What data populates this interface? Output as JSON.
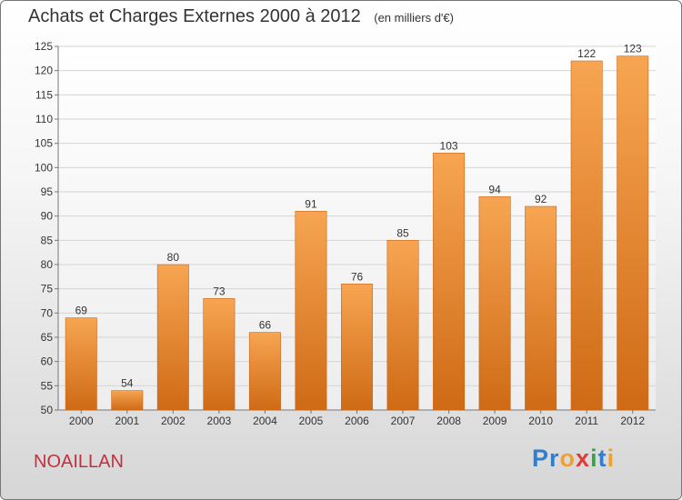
{
  "title": "Achats et Charges Externes 2000 à 2012",
  "unit": "(en milliers d'€)",
  "commune": "NOAILLAN",
  "brand": {
    "letters": [
      "P",
      "r",
      "o",
      "x",
      "i",
      "t",
      "i"
    ],
    "colors": [
      "#2f7fd1",
      "#2f7fd1",
      "#f0a030",
      "#e03a3a",
      "#3aa24a",
      "#2f7fd1",
      "#f0a030"
    ]
  },
  "chart_data": {
    "type": "bar",
    "categories": [
      "2000",
      "2001",
      "2002",
      "2003",
      "2004",
      "2005",
      "2006",
      "2007",
      "2008",
      "2009",
      "2010",
      "2011",
      "2012"
    ],
    "values": [
      69,
      54,
      80,
      73,
      66,
      91,
      76,
      85,
      103,
      94,
      92,
      122,
      123
    ],
    "title": "Achats et Charges Externes 2000 à 2012",
    "ylim": [
      50,
      125
    ],
    "yticks": [
      50,
      55,
      60,
      65,
      70,
      75,
      80,
      85,
      90,
      95,
      100,
      105,
      110,
      115,
      120,
      125
    ],
    "grid": true,
    "bar_color": "#f0963a"
  }
}
